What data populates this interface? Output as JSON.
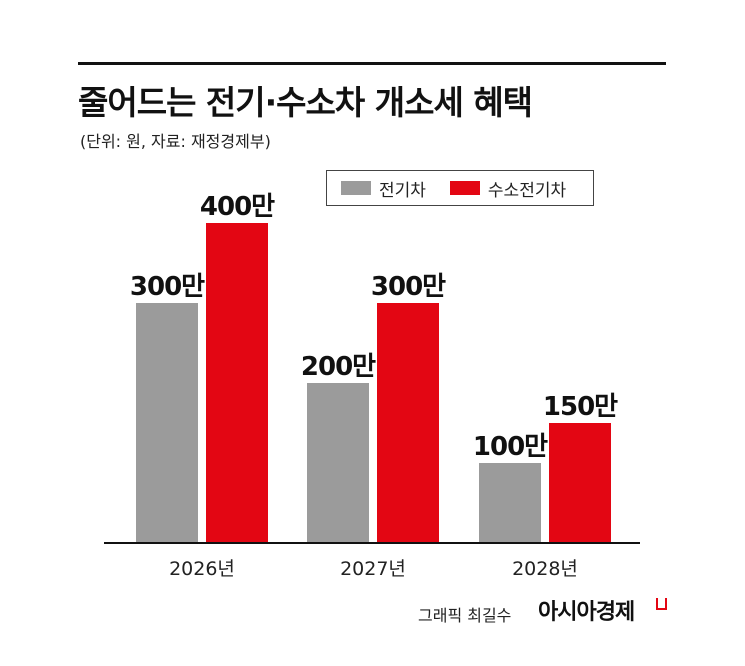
{
  "title": "줄어드는 전기·수소차 개소세 혜택",
  "subtitle": "(단위: 원, 자료: 재정경제부)",
  "credit": "그래픽 최길수",
  "brand": "아시아경제",
  "colors": {
    "ev": "#9b9b9b",
    "hydrogen": "#e30613",
    "axis": "#111111"
  },
  "chart_data": {
    "type": "bar",
    "categories": [
      "2026년",
      "2027년",
      "2028년"
    ],
    "series": [
      {
        "name": "전기차",
        "values": [
          3000000,
          2000000,
          1000000
        ],
        "labels": [
          "300만",
          "200만",
          "100만"
        ],
        "color": "#9b9b9b"
      },
      {
        "name": "수소전기차",
        "values": [
          4000000,
          3000000,
          1500000
        ],
        "labels": [
          "400만",
          "300만",
          "150만"
        ],
        "color": "#e30613"
      }
    ],
    "ylim": [
      0,
      4000000
    ],
    "grid": false,
    "legend": "top-right",
    "xlabel": "",
    "ylabel": ""
  }
}
